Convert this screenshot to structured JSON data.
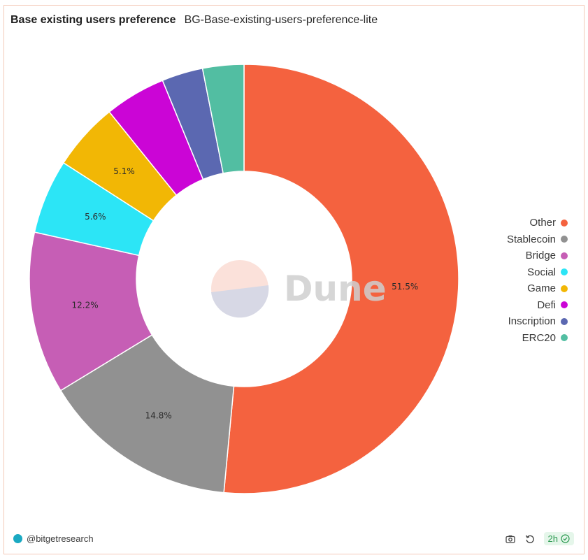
{
  "header": {
    "title": "Base existing users preference",
    "subtitle": "BG-Base-existing-users-preference-lite"
  },
  "chart_data": {
    "type": "pie",
    "donut": true,
    "slices": [
      {
        "name": "Other",
        "value": 51.5,
        "label": "51.5%",
        "color": "#f4623f"
      },
      {
        "name": "Stablecoin",
        "value": 14.8,
        "label": "14.8%",
        "color": "#919191"
      },
      {
        "name": "Bridge",
        "value": 12.2,
        "label": "12.2%",
        "color": "#c65eb5"
      },
      {
        "name": "Social",
        "value": 5.6,
        "label": "5.6%",
        "color": "#2ce5f6"
      },
      {
        "name": "Game",
        "value": 5.1,
        "label": "5.1%",
        "color": "#f2b705"
      },
      {
        "name": "Defi",
        "value": 4.6,
        "label": "",
        "color": "#cb05d6"
      },
      {
        "name": "Inscription",
        "value": 3.1,
        "label": "",
        "color": "#5b68b1"
      },
      {
        "name": "ERC20",
        "value": 3.1,
        "label": "",
        "color": "#52bea2"
      }
    ],
    "legend_position": "right"
  },
  "watermark": {
    "text": "Dune"
  },
  "footer": {
    "handle": "@bitgetresearch",
    "refresh_badge": "2h",
    "icons": [
      "camera-icon",
      "refresh-icon",
      "check-circle-icon"
    ]
  }
}
